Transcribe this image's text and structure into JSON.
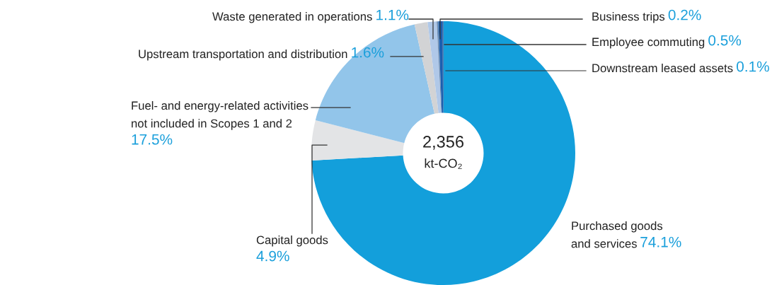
{
  "chart_data": {
    "type": "donut",
    "categories": [
      "Purchased goods\nand services",
      "Capital goods",
      "Fuel- and energy-related activities\nnot included in Scopes 1 and 2",
      "Upstream transportation and distribution",
      "Waste generated in operations",
      "Business trips",
      "Employee commuting",
      "Downstream leased assets"
    ],
    "values": [
      74.1,
      4.9,
      17.5,
      1.6,
      1.1,
      0.2,
      0.5,
      0.1
    ],
    "colors": [
      "#139fdb",
      "#e3e4e6",
      "#92c5ea",
      "#d2d3d5",
      "#b0c8e8",
      "#6f8fb5",
      "#1a5fb0",
      "#0d3d8a"
    ],
    "value_labels": [
      "74.1%",
      "4.9%",
      "17.5%",
      "1.6%",
      "1.1%",
      "0.2%",
      "0.5%",
      "0.1%"
    ],
    "annotations": [
      "2,356",
      "kt-CO₂"
    ]
  }
}
